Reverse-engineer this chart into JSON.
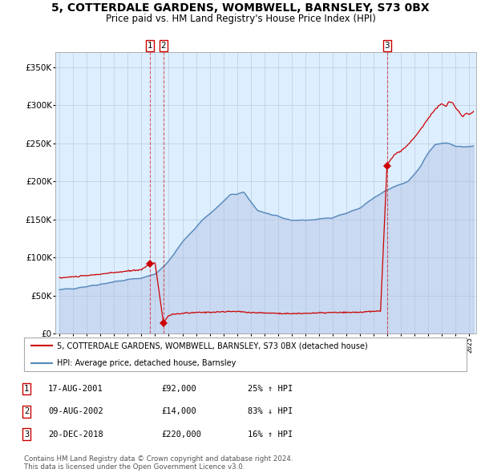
{
  "title": "5, COTTERDALE GARDENS, WOMBWELL, BARNSLEY, S73 0BX",
  "subtitle": "Price paid vs. HM Land Registry's House Price Index (HPI)",
  "xlim": [
    1994.7,
    2025.5
  ],
  "ylim": [
    0,
    370000
  ],
  "yticks": [
    0,
    50000,
    100000,
    150000,
    200000,
    250000,
    300000,
    350000
  ],
  "ytick_labels": [
    "£0",
    "£50K",
    "£100K",
    "£150K",
    "£200K",
    "£250K",
    "£300K",
    "£350K"
  ],
  "sale_dates": [
    2001.63,
    2002.61,
    2018.97
  ],
  "sale_prices": [
    92000,
    14000,
    220000
  ],
  "sale_labels": [
    "1",
    "2",
    "3"
  ],
  "legend_entries": [
    "5, COTTERDALE GARDENS, WOMBWELL, BARNSLEY, S73 0BX (detached house)",
    "HPI: Average price, detached house, Barnsley"
  ],
  "table_rows": [
    [
      "1",
      "17-AUG-2001",
      "£92,000",
      "25% ↑ HPI"
    ],
    [
      "2",
      "09-AUG-2002",
      "£14,000",
      "83% ↓ HPI"
    ],
    [
      "3",
      "20-DEC-2018",
      "£220,000",
      "16% ↑ HPI"
    ]
  ],
  "footer": "Contains HM Land Registry data © Crown copyright and database right 2024.\nThis data is licensed under the Open Government Licence v3.0.",
  "red_color": "#cc0000",
  "blue_color": "#5588bb",
  "blue_fill_color": "#aabbdd",
  "bg_color": "#ddeeff",
  "grid_color": "#bbccdd",
  "title_fontsize": 10,
  "subtitle_fontsize": 8.5
}
